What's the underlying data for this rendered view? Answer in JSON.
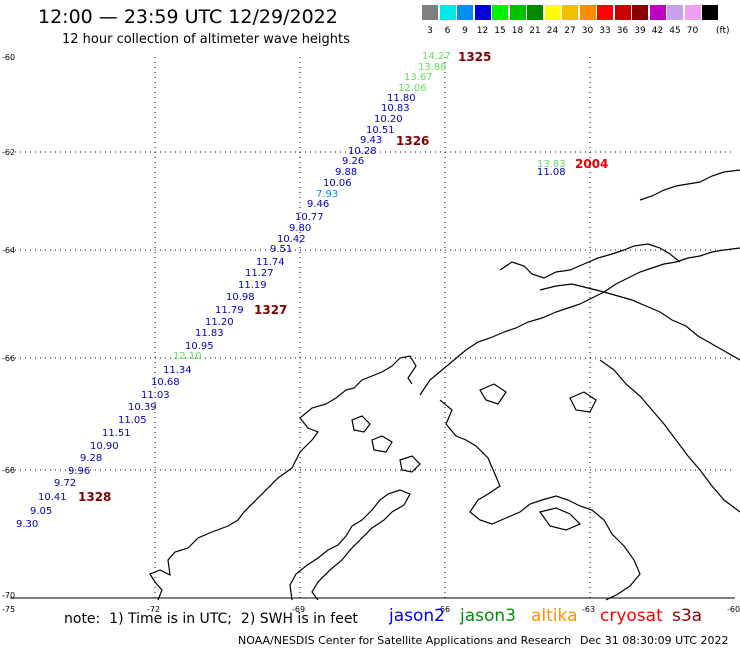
{
  "header": {
    "title": "12:00 — 23:59 UTC 12/29/2022",
    "subtitle": "12 hour collection of altimeter wave heights"
  },
  "legend": {
    "unit": "(ft)",
    "bins": [
      {
        "label": "3",
        "color": "#808080"
      },
      {
        "label": "6",
        "color": "#00e8e8"
      },
      {
        "label": "9",
        "color": "#0090f0"
      },
      {
        "label": "12",
        "color": "#0000d8"
      },
      {
        "label": "15",
        "color": "#00f000"
      },
      {
        "label": "18",
        "color": "#00c000"
      },
      {
        "label": "21",
        "color": "#008800"
      },
      {
        "label": "24",
        "color": "#ffff00"
      },
      {
        "label": "27",
        "color": "#f0c000"
      },
      {
        "label": "30",
        "color": "#ff8c00"
      },
      {
        "label": "33",
        "color": "#ff0000"
      },
      {
        "label": "36",
        "color": "#c80000"
      },
      {
        "label": "39",
        "color": "#880000"
      },
      {
        "label": "42",
        "color": "#c000c0"
      },
      {
        "label": "45",
        "color": "#c8a0f0"
      },
      {
        "label": "70",
        "color": "#f0a0f0"
      },
      {
        "label": "",
        "color": "#000000"
      }
    ]
  },
  "axes": {
    "lat_labels": [
      "-60",
      "-62",
      "-64",
      "-66",
      "-68",
      "-70"
    ],
    "lon_labels": [
      "-75",
      "-72",
      "-69",
      "-66",
      "-63",
      "-60"
    ]
  },
  "observations": [
    {
      "v": "14.27",
      "c": "#60e060"
    },
    {
      "v": "13.88",
      "c": "#60e060"
    },
    {
      "v": "13.67",
      "c": "#60e060"
    },
    {
      "v": "12.06",
      "c": "#60e060"
    },
    {
      "v": "11.80",
      "c": "#0000c0"
    },
    {
      "v": "10.83",
      "c": "#0000c0"
    },
    {
      "v": "10.20",
      "c": "#0000c0"
    },
    {
      "v": "10.51",
      "c": "#0000c0"
    },
    {
      "v": "9.43",
      "c": "#0000c0"
    },
    {
      "v": "10.28",
      "c": "#0000c0"
    },
    {
      "v": "9.26",
      "c": "#0000c0"
    },
    {
      "v": "9.88",
      "c": "#0000c0"
    },
    {
      "v": "10.06",
      "c": "#0000c0"
    },
    {
      "v": "7.93",
      "c": "#0090f0"
    },
    {
      "v": "9.46",
      "c": "#0000c0"
    },
    {
      "v": "10.77",
      "c": "#0000c0"
    },
    {
      "v": "9.80",
      "c": "#0000c0"
    },
    {
      "v": "10.42",
      "c": "#0000c0"
    },
    {
      "v": "9.51",
      "c": "#0000c0"
    },
    {
      "v": "11.74",
      "c": "#0000c0"
    },
    {
      "v": "11.27",
      "c": "#0000c0"
    },
    {
      "v": "11.19",
      "c": "#0000c0"
    },
    {
      "v": "10.98",
      "c": "#0000c0"
    },
    {
      "v": "11.79",
      "c": "#0000c0"
    },
    {
      "v": "11.20",
      "c": "#0000c0"
    },
    {
      "v": "11.83",
      "c": "#0000c0"
    },
    {
      "v": "10.95",
      "c": "#0000c0"
    },
    {
      "v": "12.10",
      "c": "#60e060"
    },
    {
      "v": "11.34",
      "c": "#0000c0"
    },
    {
      "v": "10.68",
      "c": "#0000c0"
    },
    {
      "v": "11.03",
      "c": "#0000c0"
    },
    {
      "v": "10.39",
      "c": "#0000c0"
    },
    {
      "v": "11.05",
      "c": "#0000c0"
    },
    {
      "v": "11.51",
      "c": "#0000c0"
    },
    {
      "v": "10.90",
      "c": "#0000c0"
    },
    {
      "v": "9.28",
      "c": "#0000c0"
    },
    {
      "v": "9.96",
      "c": "#0000c0"
    },
    {
      "v": "9.72",
      "c": "#0000c0"
    },
    {
      "v": "10.41",
      "c": "#0000c0"
    },
    {
      "v": "9.05",
      "c": "#0000c0"
    },
    {
      "v": "9.30",
      "c": "#0000c0"
    }
  ],
  "second_track": [
    {
      "v": "13.83",
      "c": "#60e060"
    },
    {
      "v": "11.08",
      "c": "#0000c0"
    }
  ],
  "time_tags": [
    {
      "t": "1325",
      "c": "#800000"
    },
    {
      "t": "1326",
      "c": "#800000"
    },
    {
      "t": "1327",
      "c": "#800000"
    },
    {
      "t": "1328",
      "c": "#800000"
    },
    {
      "t": "2004",
      "c": "#e00000"
    }
  ],
  "footer": {
    "note": "note:  1) Time is in UTC;  2) SWH is in feet",
    "missions": [
      {
        "name": "jason2",
        "color": "#0000ff"
      },
      {
        "name": "jason3",
        "color": "#009000"
      },
      {
        "name": "altika",
        "color": "#ff9000"
      },
      {
        "name": "cryosat",
        "color": "#ff0000"
      },
      {
        "name": "s3a",
        "color": "#900000"
      }
    ],
    "credit": "NOAA/NESDIS Center for Satellite Applications and Research",
    "timestamp": "Dec 31 08:30:09 UTC 2022"
  }
}
